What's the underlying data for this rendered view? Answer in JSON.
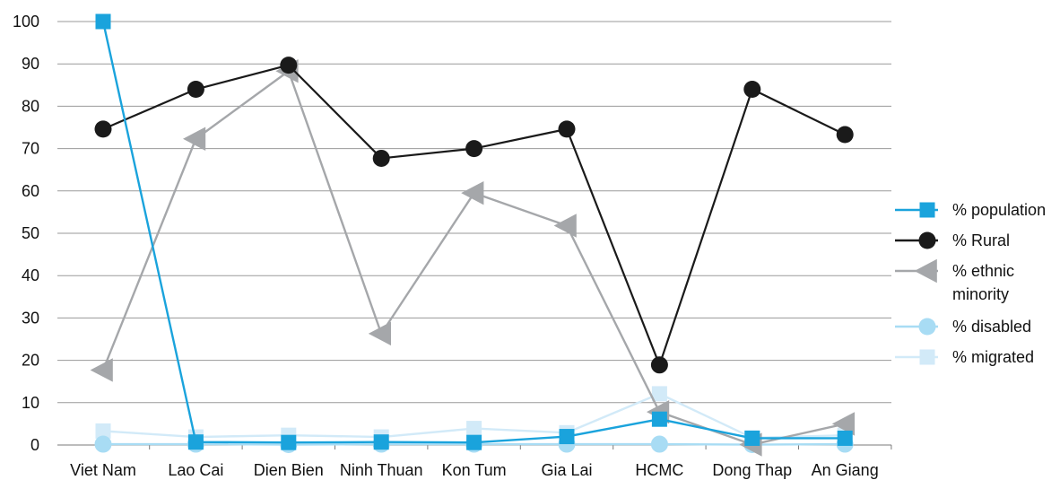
{
  "chart_data": {
    "type": "line",
    "title": "",
    "xlabel": "",
    "ylabel": "",
    "categories": [
      "Viet Nam",
      "Lao Cai",
      "Dien Bien",
      "Ninh Thuan",
      "Kon Tum",
      "Gia Lai",
      "HCMC",
      "Dong Thap",
      "An Giang"
    ],
    "ylim": [
      0,
      100
    ],
    "yticks": [
      0,
      10,
      20,
      30,
      40,
      50,
      60,
      70,
      80,
      90,
      100
    ],
    "grid": "horizontal",
    "legend_position": "right",
    "series": [
      {
        "name": "% population",
        "legend_lines": [
          "% population"
        ],
        "color": "#1aa3dc",
        "marker": "square",
        "values": [
          100,
          0.7,
          0.6,
          0.7,
          0.6,
          2.0,
          6.1,
          1.6,
          1.6
        ]
      },
      {
        "name": "% Rural",
        "legend_lines": [
          "% Rural"
        ],
        "color": "#1a1a1a",
        "marker": "circle",
        "values": [
          74.6,
          84.0,
          89.7,
          67.7,
          70.0,
          74.6,
          18.9,
          84.0,
          73.3
        ]
      },
      {
        "name": "% ethnic minority",
        "legend_lines": [
          "% ethnic",
          "minority"
        ],
        "color": "#a5a7aa",
        "marker": "triangle-left",
        "values": [
          17.7,
          72.3,
          88.3,
          26.3,
          59.5,
          51.8,
          7.8,
          0.1,
          5.0
        ]
      },
      {
        "name": "% disabled",
        "legend_lines": [
          "% disabled"
        ],
        "color": "#a8dcf4",
        "marker": "circle",
        "values": [
          0.2,
          0.2,
          0.1,
          0.2,
          0.2,
          0.2,
          0.2,
          0.1,
          0.2
        ]
      },
      {
        "name": "% migrated",
        "legend_lines": [
          "% migrated"
        ],
        "color": "#d2eaf8",
        "marker": "square",
        "values": [
          3.3,
          1.9,
          2.3,
          1.9,
          3.9,
          2.9,
          12.1,
          1.7,
          2.3
        ]
      }
    ]
  }
}
